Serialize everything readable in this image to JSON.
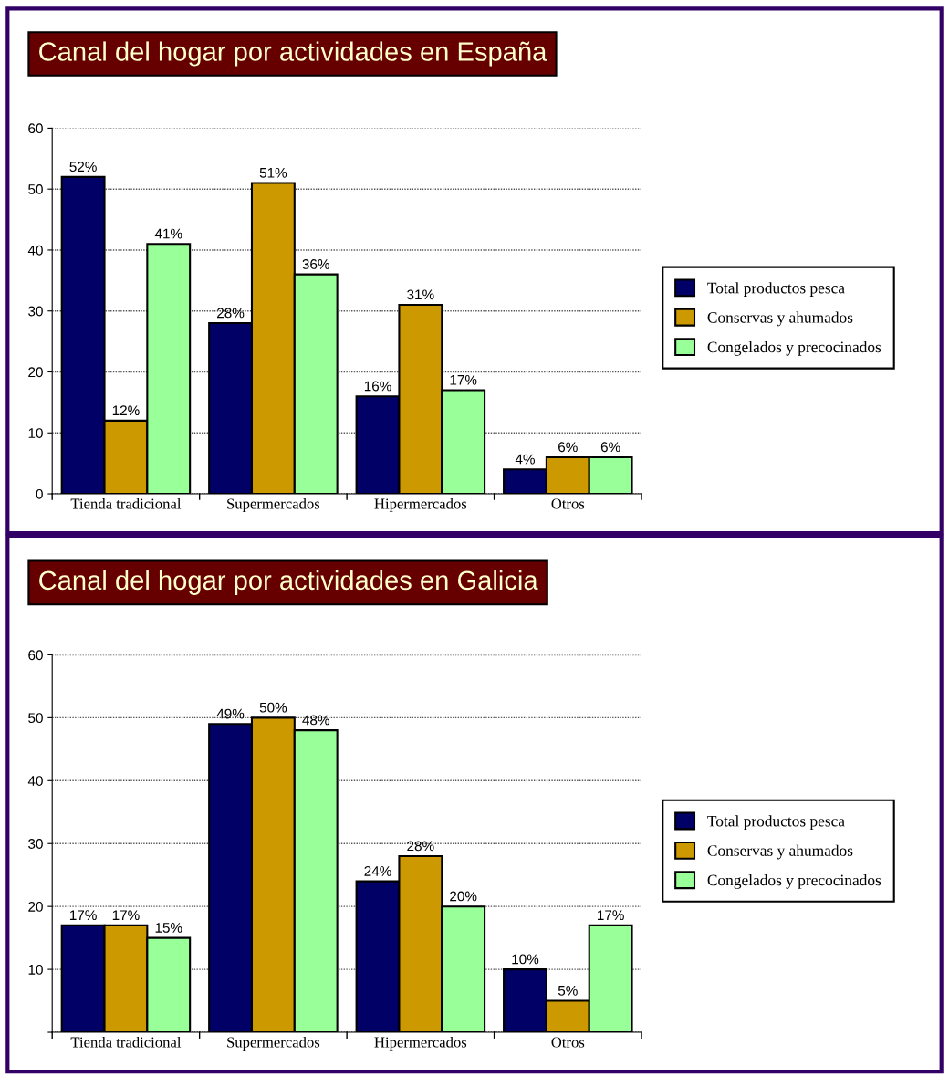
{
  "chart_data": [
    {
      "type": "bar",
      "title": "Canal del hogar por actividades en España",
      "categories": [
        "Tienda tradicional",
        "Supermercados",
        "Hipermercados",
        "Otros"
      ],
      "series": [
        {
          "name": "Total productos pesca",
          "color": "#000066",
          "values": [
            52,
            28,
            16,
            4
          ],
          "value_labels": [
            "52%",
            "28%",
            "16%",
            "4%"
          ]
        },
        {
          "name": "Conservas y ahumados",
          "color": "#cc9900",
          "values": [
            12,
            51,
            31,
            6
          ],
          "value_labels": [
            "12%",
            "51%",
            "31%",
            "6%"
          ]
        },
        {
          "name": "Congelados y precocinados",
          "color": "#99ff99",
          "values": [
            41,
            36,
            17,
            6
          ],
          "value_labels": [
            "41%",
            "36%",
            "17%",
            "6%"
          ]
        }
      ],
      "ylim": [
        0,
        60
      ],
      "yticks": [
        0,
        10,
        20,
        30,
        40,
        50,
        60
      ],
      "grid": "y",
      "legend": "right"
    },
    {
      "type": "bar",
      "title": "Canal del hogar por actividades en Galicia",
      "categories": [
        "Tienda tradicional",
        "Supermercados",
        "Hipermercados",
        "Otros"
      ],
      "series": [
        {
          "name": "Total productos pesca",
          "color": "#000066",
          "values": [
            17,
            49,
            24,
            10
          ],
          "value_labels": [
            "17%",
            "49%",
            "24%",
            "10%"
          ]
        },
        {
          "name": "Conservas y ahumados",
          "color": "#cc9900",
          "values": [
            17,
            50,
            28,
            5
          ],
          "value_labels": [
            "17%",
            "50%",
            "28%",
            "5%"
          ]
        },
        {
          "name": "Congelados y precocinados",
          "color": "#99ff99",
          "values": [
            15,
            48,
            20,
            17
          ],
          "value_labels": [
            "15%",
            "48%",
            "20%",
            "17%"
          ]
        }
      ],
      "ylim": [
        0,
        60
      ],
      "yticks": [
        {
          "value": 0,
          "label": null
        },
        10,
        20,
        30,
        40,
        50,
        60
      ],
      "grid": "y",
      "legend": "right"
    }
  ]
}
